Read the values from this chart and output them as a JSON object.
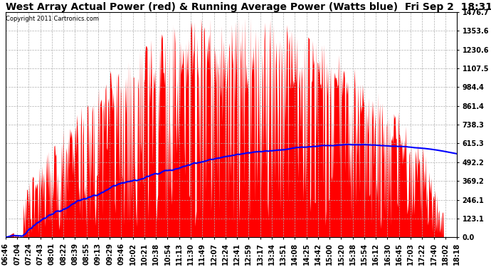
{
  "title": "West Array Actual Power (red) & Running Average Power (Watts blue)  Fri Sep 2  18:31",
  "copyright": "Copyright 2011 Cartronics.com",
  "ylabel_right_values": [
    0.0,
    123.1,
    246.1,
    369.2,
    492.2,
    615.3,
    738.3,
    861.4,
    984.4,
    1107.5,
    1230.6,
    1353.6,
    1476.7
  ],
  "ymax": 1476.7,
  "ymin": 0.0,
  "x_labels": [
    "06:46",
    "07:04",
    "07:24",
    "07:43",
    "08:01",
    "08:22",
    "08:39",
    "08:55",
    "09:13",
    "09:29",
    "09:46",
    "10:02",
    "10:21",
    "10:38",
    "10:54",
    "11:13",
    "11:30",
    "11:49",
    "12:07",
    "12:24",
    "12:41",
    "12:59",
    "13:17",
    "13:34",
    "13:51",
    "14:08",
    "14:25",
    "14:42",
    "15:00",
    "15:20",
    "15:38",
    "15:54",
    "16:12",
    "16:30",
    "16:45",
    "17:03",
    "17:22",
    "17:40",
    "18:02",
    "18:18"
  ],
  "background_color": "#ffffff",
  "plot_bg_color": "#ffffff",
  "grid_color": "#b0b0b0",
  "actual_color": "#ff0000",
  "avg_color": "#0000ff",
  "title_fontsize": 10,
  "tick_fontsize": 7,
  "fig_width": 6.9,
  "fig_height": 3.75,
  "dpi": 100
}
